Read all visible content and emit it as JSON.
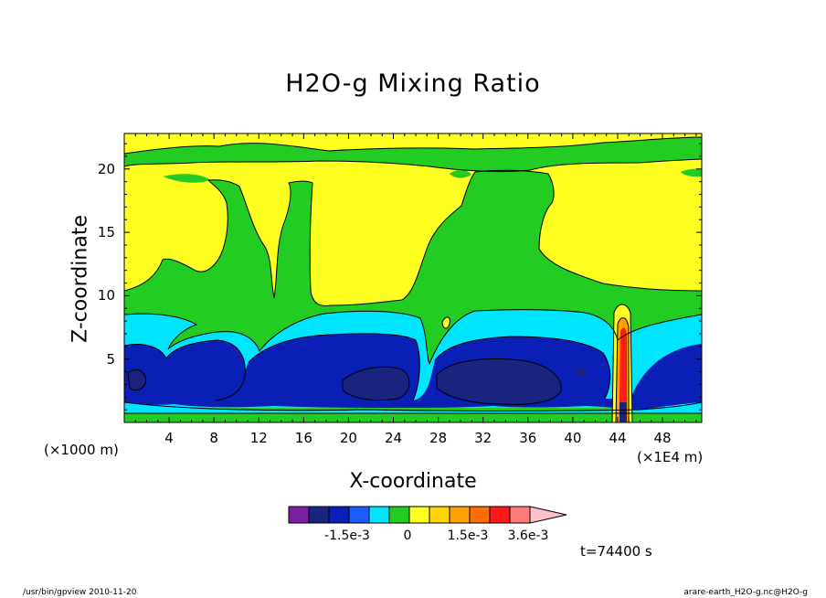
{
  "chart_data": {
    "type": "heatmap",
    "title": "H2O-g Mixing Ratio",
    "xlabel": "X-coordinate",
    "ylabel": "Z-coordinate",
    "x_unit_left": "(×1000 m)",
    "x_unit_right": "(×1E4 m)",
    "xlim": [
      0,
      51.5
    ],
    "ylim": [
      0,
      22.8
    ],
    "x_ticks": [
      "4",
      "8",
      "12",
      "16",
      "20",
      "24",
      "28",
      "32",
      "36",
      "40",
      "44",
      "48"
    ],
    "y_ticks": [
      "5",
      "10",
      "15",
      "20"
    ],
    "grid": false,
    "colorbar": {
      "colors": [
        "#7b1fa2",
        "#1a237e",
        "#0a1fb5",
        "#1e5bff",
        "#00e5ff",
        "#22cc22",
        "#ffff22",
        "#ffd600",
        "#ffa000",
        "#ff6d00",
        "#ff1a1a",
        "#ff7a7a",
        "#ffc0cb"
      ],
      "labels": [
        "-1.5e-3",
        "0",
        "1.5e-3",
        "3.6e-3"
      ],
      "extend": "max"
    },
    "time_label": "t=74400 s",
    "footer_left": "/usr/bin/gpview  2010-11-20",
    "footer_right": "arare-earth_H2O-g.nc@H2O-g"
  }
}
